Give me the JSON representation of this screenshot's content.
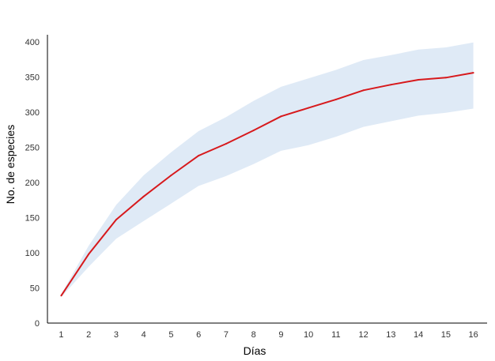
{
  "chart_data": {
    "type": "line",
    "xlabel": "Días",
    "ylabel": "No. de especies",
    "x": [
      1,
      2,
      3,
      4,
      5,
      6,
      7,
      8,
      9,
      10,
      11,
      12,
      13,
      14,
      15,
      16
    ],
    "xlim": [
      0.5,
      16.5
    ],
    "ylim": [
      0,
      410
    ],
    "y_ticks": [
      0,
      50,
      100,
      150,
      200,
      250,
      300,
      350,
      400
    ],
    "grid": false,
    "legend": "none",
    "series": [
      {
        "values": [
          39,
          98,
          147,
          180,
          210,
          238,
          255,
          274,
          294,
          306,
          318,
          331,
          339,
          346,
          349,
          356
        ],
        "color": "#d7191c"
      }
    ],
    "band": {
      "lower": [
        37,
        80,
        120,
        145,
        170,
        195,
        209,
        226,
        245,
        253,
        265,
        279,
        287,
        295,
        299,
        305
      ],
      "upper": [
        41,
        110,
        168,
        210,
        243,
        273,
        293,
        316,
        336,
        348,
        360,
        374,
        381,
        389,
        392,
        399
      ],
      "color": "#dfeaf6"
    }
  }
}
